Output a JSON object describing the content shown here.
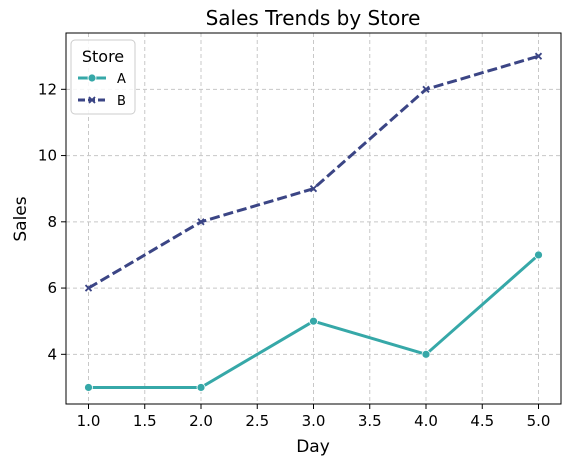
{
  "chart_data": {
    "type": "line",
    "title": "Sales Trends by Store",
    "xlabel": "Day",
    "ylabel": "Sales",
    "xlim": [
      0.8,
      5.2
    ],
    "ylim": [
      2.5,
      13.7
    ],
    "xticks": [
      1.0,
      1.5,
      2.0,
      2.5,
      3.0,
      3.5,
      4.0,
      4.5,
      5.0
    ],
    "xtick_labels": [
      "1.0",
      "1.5",
      "2.0",
      "2.5",
      "3.0",
      "3.5",
      "4.0",
      "4.5",
      "5.0"
    ],
    "yticks": [
      4,
      6,
      8,
      10,
      12
    ],
    "ytick_labels": [
      "4",
      "6",
      "8",
      "10",
      "12"
    ],
    "grid": true,
    "legend": {
      "title": "Store",
      "placement": "top-left"
    },
    "x": [
      1,
      2,
      3,
      4,
      5
    ],
    "series": [
      {
        "name": "A",
        "values": [
          3,
          3,
          5,
          4,
          7
        ],
        "color": "#36a8a8",
        "style": "solid",
        "marker": "circle"
      },
      {
        "name": "B",
        "values": [
          6,
          8,
          9,
          12,
          13
        ],
        "color": "#3b4585",
        "style": "dashed",
        "marker": "x"
      }
    ]
  }
}
